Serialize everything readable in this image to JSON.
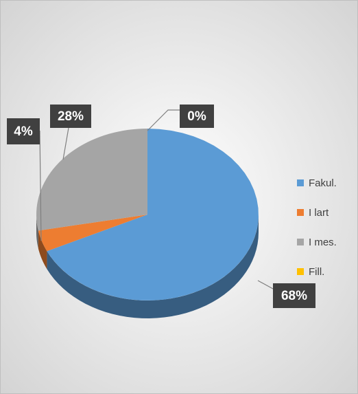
{
  "chart_data": {
    "type": "pie",
    "categories": [
      "Fakul.",
      "I lart",
      "I mes.",
      "Fill."
    ],
    "values": [
      68,
      4,
      28,
      0
    ],
    "value_labels": [
      "68%",
      "4%",
      "28%",
      "0%"
    ],
    "colors": [
      "#5b9bd5",
      "#ed7d31",
      "#a5a5a5",
      "#ffc000"
    ],
    "legend": "right"
  }
}
